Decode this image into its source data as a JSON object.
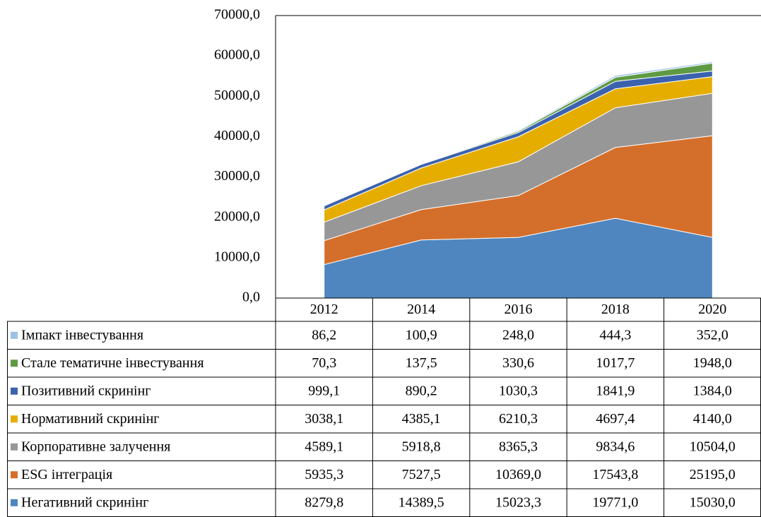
{
  "chart_data": {
    "type": "stacked_area",
    "categories": [
      "2012",
      "2014",
      "2016",
      "2018",
      "2020"
    ],
    "series": [
      {
        "name": "Негативний скринінг",
        "color": "#4f86c0",
        "values": [
          8279.8,
          14389.5,
          15023.3,
          19771.0,
          15030.0
        ],
        "value_labels": [
          "8279,8",
          "14389,5",
          "15023,3",
          "19771,0",
          "15030,0"
        ]
      },
      {
        "name": "ESG інтеграція",
        "color": "#d46f2b",
        "values": [
          5935.3,
          7527.5,
          10369.0,
          17543.8,
          25195.0
        ],
        "value_labels": [
          "5935,3",
          "7527,5",
          "10369,0",
          "17543,8",
          "25195,0"
        ]
      },
      {
        "name": "Корпоративне залучення",
        "color": "#979797",
        "values": [
          4589.1,
          5918.8,
          8365.3,
          9834.6,
          10504.0
        ],
        "value_labels": [
          "4589,1",
          "5918,8",
          "8365,3",
          "9834,6",
          "10504,0"
        ]
      },
      {
        "name": "Нормативний скринінг",
        "color": "#e5ad00",
        "values": [
          3038.1,
          4385.1,
          6210.3,
          4697.4,
          4140.0
        ],
        "value_labels": [
          "3038,1",
          "4385,1",
          "6210,3",
          "4697,4",
          "4140,0"
        ]
      },
      {
        "name": "Позитивний скринінг",
        "color": "#3b62ad",
        "values": [
          999.1,
          890.2,
          1030.3,
          1841.9,
          1384.0
        ],
        "value_labels": [
          "999,1",
          "890,2",
          "1030,3",
          "1841,9",
          "1384,0"
        ]
      },
      {
        "name": "Стале тематичне інвестування",
        "color": "#5e9a43",
        "values": [
          70.3,
          137.5,
          330.6,
          1017.7,
          1948.0
        ],
        "value_labels": [
          "70,3",
          "137,5",
          "330,6",
          "1017,7",
          "1948,0"
        ]
      },
      {
        "name": "Імпакт інвестування",
        "color": "#9dc1e6",
        "values": [
          86.2,
          100.9,
          248.0,
          444.3,
          352.0
        ],
        "value_labels": [
          "86,2",
          "100,9",
          "248,0",
          "444,3",
          "352,0"
        ]
      }
    ],
    "ylim": [
      0,
      70000
    ],
    "yticks": [
      {
        "value": 0,
        "label": "0,0"
      },
      {
        "value": 10000,
        "label": "10000,0"
      },
      {
        "value": 20000,
        "label": "20000,0"
      },
      {
        "value": 30000,
        "label": "30000,0"
      },
      {
        "value": 40000,
        "label": "40000,0"
      },
      {
        "value": 50000,
        "label": "50000,0"
      },
      {
        "value": 60000,
        "label": "60000,0"
      },
      {
        "value": 70000,
        "label": "70000,0"
      }
    ],
    "grid": false
  }
}
